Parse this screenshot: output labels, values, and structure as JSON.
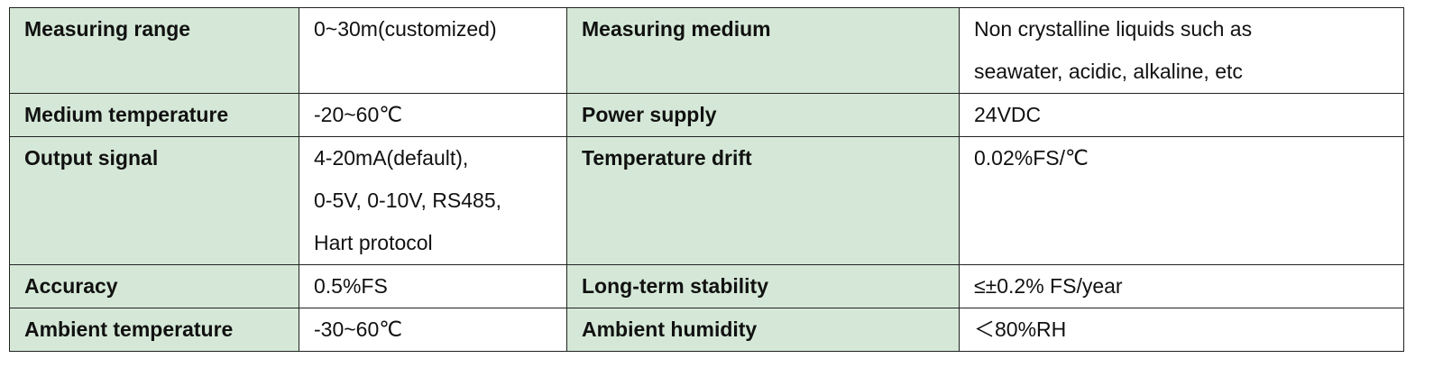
{
  "table": {
    "rows": [
      [
        "Measuring range",
        "0~30m(customized)",
        "Measuring medium",
        [
          "Non crystalline liquids such as",
          "seawater, acidic, alkaline, etc"
        ]
      ],
      [
        "Medium temperature",
        "-20~60℃",
        "Power supply",
        "24VDC"
      ],
      [
        "Output signal",
        [
          "4-20mA(default),",
          "0-5V, 0-10V, RS485,",
          "Hart protocol"
        ],
        "Temperature drift",
        "0.02%FS/℃"
      ],
      [
        "Accuracy",
        "0.5%FS",
        "Long-term stability",
        "≤±0.2% FS/year"
      ],
      [
        "Ambient temperature",
        "-30~60℃",
        "Ambient humidity",
        "＜80%RH"
      ]
    ]
  }
}
